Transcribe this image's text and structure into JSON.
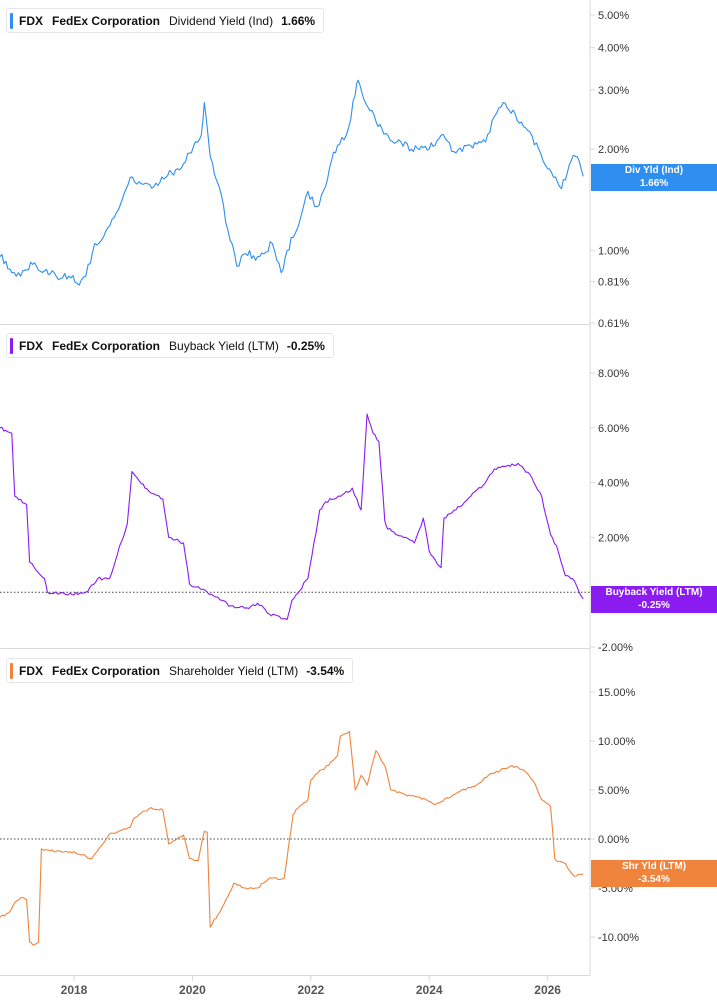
{
  "colors": {
    "dividend": "#2e8ff0",
    "buyback": "#8a1cf2",
    "shareholder": "#f0843c",
    "axis": "#d9d9d9",
    "tick_text": "#333333",
    "zero_line": "#444444"
  },
  "panels": [
    {
      "ticker": "FDX",
      "company": "FedEx Corporation",
      "metric": "Dividend Yield (Ind)",
      "value": "1.66%",
      "tag_line1": "Div Yld (Ind)",
      "tag_line2": "1.66%"
    },
    {
      "ticker": "FDX",
      "company": "FedEx Corporation",
      "metric": "Buyback Yield (LTM)",
      "value": "-0.25%",
      "tag_line1": "Buyback Yield (LTM)",
      "tag_line2": "-0.25%"
    },
    {
      "ticker": "FDX",
      "company": "FedEx Corporation",
      "metric": "Shareholder Yield (LTM)",
      "value": "-3.54%",
      "tag_line1": "Shr Yld (LTM)",
      "tag_line2": "-3.54%"
    }
  ],
  "chart_data": [
    {
      "type": "line",
      "title": "FDX FedEx Corporation Dividend Yield (Ind) 1.66%",
      "scale": "log",
      "ylim": [
        0.61,
        5.6
      ],
      "y_ticks": [
        "5.00%",
        "4.00%",
        "3.00%",
        "2.00%",
        "1.00%",
        "0.81%",
        "0.61%"
      ],
      "y_tick_values": [
        5.0,
        4.0,
        3.0,
        2.0,
        1.0,
        0.81,
        0.61
      ],
      "xlim": [
        2016.75,
        2026.8
      ],
      "x_ticks": [
        "2018",
        "2020",
        "2022",
        "2024",
        "2026"
      ],
      "series": [
        {
          "x": [
            2016.75,
            2016.85,
            2016.95,
            2017.1,
            2017.3,
            2017.5,
            2017.7,
            2017.95,
            2018.05,
            2018.2,
            2018.35,
            2018.5,
            2018.75,
            2018.95,
            2019.1,
            2019.35,
            2019.55,
            2019.75,
            2019.95,
            2020.15,
            2020.2,
            2020.3,
            2020.45,
            2020.6,
            2020.75,
            2020.9,
            2021.1,
            2021.35,
            2021.5,
            2021.6,
            2021.8,
            2021.95,
            2022.1,
            2022.25,
            2022.35,
            2022.45,
            2022.6,
            2022.75,
            2022.8,
            2022.9,
            2023.0,
            2023.2,
            2023.45,
            2023.7,
            2024.0,
            2024.2,
            2024.45,
            2024.7,
            2024.95,
            2025.1,
            2025.25,
            2025.45,
            2025.7,
            2025.85,
            2026.0,
            2026.1,
            2026.2,
            2026.3,
            2026.4,
            2026.5,
            2026.6
          ],
          "values": [
            0.96,
            0.93,
            0.86,
            0.84,
            0.91,
            0.87,
            0.84,
            0.83,
            0.8,
            0.84,
            1.05,
            1.1,
            1.32,
            1.65,
            1.6,
            1.55,
            1.65,
            1.75,
            1.95,
            2.2,
            2.75,
            1.9,
            1.55,
            1.15,
            0.9,
            0.98,
            0.96,
            1.05,
            0.86,
            1.0,
            1.2,
            1.5,
            1.35,
            1.55,
            1.85,
            2.05,
            2.2,
            2.9,
            3.2,
            2.8,
            2.6,
            2.3,
            2.1,
            2.0,
            2.0,
            2.2,
            1.95,
            2.05,
            2.1,
            2.5,
            2.75,
            2.55,
            2.25,
            2.0,
            1.75,
            1.65,
            1.55,
            1.62,
            1.85,
            1.9,
            1.66
          ]
        }
      ]
    },
    {
      "type": "line",
      "title": "FDX FedEx Corporation Buyback Yield (LTM) -0.25%",
      "ylim": [
        -2.0,
        8.5
      ],
      "y_ticks": [
        "8.00%",
        "6.00%",
        "4.00%",
        "2.00%",
        "-2.00%"
      ],
      "y_tick_values": [
        8.0,
        6.0,
        4.0,
        2.0,
        -2.0
      ],
      "xlim": [
        2016.75,
        2026.8
      ],
      "x_ticks": [
        "2018",
        "2020",
        "2022",
        "2024",
        "2026"
      ],
      "series": [
        {
          "x": [
            2016.75,
            2016.95,
            2017.0,
            2017.2,
            2017.25,
            2017.5,
            2017.55,
            2017.9,
            2018.2,
            2018.4,
            2018.6,
            2018.9,
            2018.98,
            2019.2,
            2019.5,
            2019.6,
            2019.85,
            2019.95,
            2020.1,
            2020.25,
            2020.5,
            2020.65,
            2020.95,
            2021.1,
            2021.3,
            2021.6,
            2021.68,
            2021.95,
            2022.15,
            2022.25,
            2022.5,
            2022.7,
            2022.85,
            2022.95,
            2023.05,
            2023.15,
            2023.25,
            2023.3,
            2023.6,
            2023.75,
            2023.9,
            2024.0,
            2024.2,
            2024.25,
            2024.45,
            2024.7,
            2024.95,
            2025.1,
            2025.3,
            2025.5,
            2025.7,
            2025.9,
            2026.05,
            2026.15,
            2026.3,
            2026.42,
            2026.6
          ],
          "values": [
            6.0,
            5.8,
            3.5,
            3.2,
            1.1,
            0.5,
            0.0,
            -0.1,
            0.0,
            0.5,
            0.5,
            2.5,
            4.4,
            3.8,
            3.4,
            2.0,
            1.8,
            0.3,
            0.2,
            0.0,
            -0.3,
            -0.5,
            -0.6,
            -0.4,
            -0.8,
            -1.0,
            -0.3,
            0.5,
            3.0,
            3.3,
            3.5,
            3.8,
            3.0,
            6.5,
            5.8,
            5.5,
            2.6,
            2.3,
            2.0,
            1.8,
            2.7,
            1.5,
            0.9,
            2.7,
            3.0,
            3.5,
            4.0,
            4.5,
            4.6,
            4.7,
            4.3,
            3.5,
            2.1,
            1.7,
            0.6,
            0.5,
            -0.25
          ]
        }
      ]
    },
    {
      "type": "line",
      "title": "FDX FedEx Corporation Shareholder Yield (LTM) -3.54%",
      "ylim": [
        -11.5,
        16.0
      ],
      "y_ticks": [
        "15.00%",
        "10.00%",
        "5.00%",
        "0.00%",
        "-5.00%",
        "-10.00%"
      ],
      "y_tick_values": [
        15.0,
        10.0,
        5.0,
        0.0,
        -5.0,
        -10.0
      ],
      "xlim": [
        2016.75,
        2026.8
      ],
      "x_ticks": [
        "2018",
        "2020",
        "2022",
        "2024",
        "2026"
      ],
      "series": [
        {
          "x": [
            2016.75,
            2016.9,
            2017.0,
            2017.1,
            2017.2,
            2017.25,
            2017.3,
            2017.4,
            2017.45,
            2017.6,
            2018.0,
            2018.3,
            2018.5,
            2018.6,
            2018.95,
            2019.0,
            2019.1,
            2019.3,
            2019.5,
            2019.6,
            2019.85,
            2019.95,
            2020.1,
            2020.2,
            2020.25,
            2020.3,
            2020.5,
            2020.7,
            2020.9,
            2021.1,
            2021.3,
            2021.55,
            2021.7,
            2021.75,
            2021.95,
            2022.0,
            2022.15,
            2022.3,
            2022.45,
            2022.5,
            2022.65,
            2022.75,
            2022.85,
            2022.95,
            2023.1,
            2023.25,
            2023.35,
            2023.6,
            2023.8,
            2023.95,
            2024.1,
            2024.3,
            2024.55,
            2024.8,
            2025.0,
            2025.2,
            2025.4,
            2025.6,
            2025.75,
            2025.9,
            2026.05,
            2026.12,
            2026.2,
            2026.3,
            2026.45,
            2026.6
          ],
          "values": [
            -8.0,
            -7.5,
            -6.5,
            -6.0,
            -6.2,
            -10.5,
            -10.8,
            -10.5,
            -1.0,
            -1.2,
            -1.3,
            -2.0,
            -0.4,
            0.5,
            1.2,
            2.0,
            2.5,
            3.2,
            3.0,
            -0.5,
            0.4,
            -2.0,
            -2.2,
            0.8,
            0.7,
            -9.0,
            -7.0,
            -4.5,
            -5.0,
            -5.0,
            -4.0,
            -4.0,
            2.5,
            3.0,
            4.0,
            6.0,
            7.0,
            7.5,
            8.5,
            10.5,
            11.0,
            5.0,
            6.5,
            5.5,
            9.0,
            7.5,
            5.0,
            4.5,
            4.3,
            4.0,
            3.5,
            4.2,
            5.0,
            5.5,
            6.5,
            7.0,
            7.5,
            7.0,
            6.0,
            4.0,
            3.3,
            -2.0,
            -2.3,
            -2.5,
            -3.8,
            -3.54
          ]
        }
      ]
    }
  ]
}
